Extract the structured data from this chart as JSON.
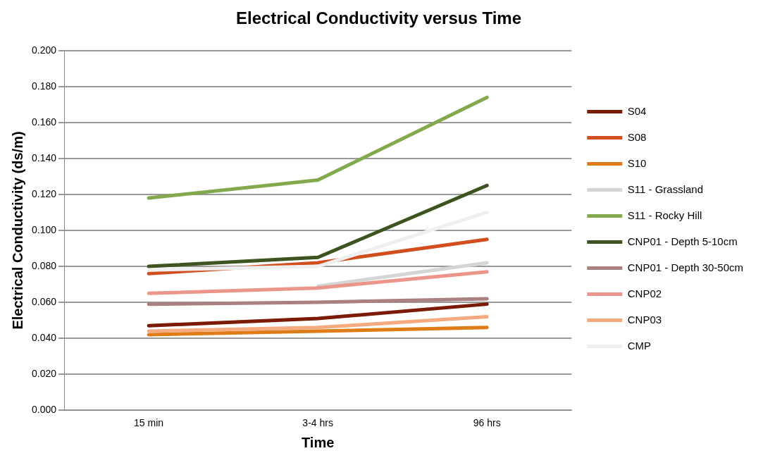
{
  "chart_data": {
    "type": "line",
    "title": "Electrical Conductivity versus Time",
    "xlabel": "Time",
    "ylabel": "Electrical Conductivity (ds/m)",
    "categories": [
      "15 min",
      "3-4 hrs",
      "96 hrs"
    ],
    "series": [
      {
        "name": "S04",
        "color": "#7b1a05",
        "values": [
          0.047,
          0.051,
          0.059
        ]
      },
      {
        "name": "S08",
        "color": "#d24e1e",
        "values": [
          0.076,
          0.082,
          0.095
        ]
      },
      {
        "name": "S10",
        "color": "#df7c18",
        "values": [
          0.042,
          0.044,
          0.046
        ]
      },
      {
        "name": "S11 - Grassland",
        "color": "#d5d5d5",
        "values": [
          null,
          0.069,
          0.082
        ]
      },
      {
        "name": "S11 - Rocky Hill",
        "color": "#84a94d",
        "values": [
          0.118,
          0.128,
          0.174
        ]
      },
      {
        "name": "CNP01 - Depth 5-10cm",
        "color": "#3e5420",
        "values": [
          0.08,
          0.085,
          0.125
        ]
      },
      {
        "name": "CNP01 - Depth 30-50cm",
        "color": "#ab8080",
        "values": [
          0.059,
          0.06,
          0.062
        ]
      },
      {
        "name": "CNP02",
        "color": "#ec958a",
        "values": [
          0.065,
          0.068,
          0.077
        ]
      },
      {
        "name": "CNP03",
        "color": "#f5aa80",
        "values": [
          0.044,
          0.046,
          0.052
        ]
      },
      {
        "name": "CMP",
        "color": "#efefef",
        "values": [
          0.078,
          0.08,
          0.11
        ]
      }
    ],
    "ylim": [
      0,
      0.2
    ],
    "yticks": [
      {
        "value": 0,
        "label": "0.000"
      },
      {
        "value": 0.02,
        "label": "0.020"
      },
      {
        "value": 0.04,
        "label": "0.040"
      },
      {
        "value": 0.06,
        "label": "0.060"
      },
      {
        "value": 0.08,
        "label": "0.080"
      },
      {
        "value": 0.1,
        "label": "0.100"
      },
      {
        "value": 0.12,
        "label": "0.120"
      },
      {
        "value": 0.14,
        "label": "0.140"
      },
      {
        "value": 0.16,
        "label": "0.160"
      },
      {
        "value": 0.18,
        "label": "0.180"
      },
      {
        "value": 0.2,
        "label": "0.200"
      }
    ],
    "grid": "y",
    "legend": "right",
    "marker": "none",
    "line_style": "solid"
  }
}
